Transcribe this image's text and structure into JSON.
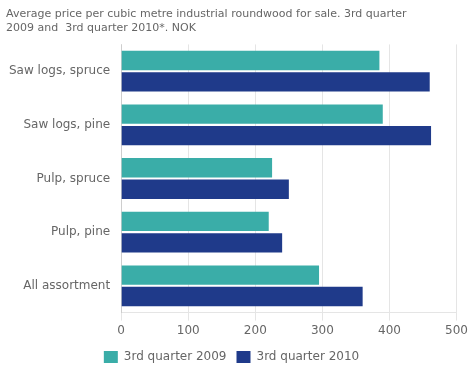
{
  "chart_data": {
    "type": "bar",
    "orientation": "horizontal",
    "title": [
      "Average price per cubic metre industrial roundwood for sale. 3rd quarter",
      "2009 and  3rd quarter 2010*. NOK"
    ],
    "categories": [
      "Saw logs, spruce",
      "Saw logs, pine",
      "Pulp, spruce",
      "Pulp, pine",
      "All assortment"
    ],
    "series": [
      {
        "name": "3rd quarter 2009",
        "color": "#3aada8",
        "values": [
          385,
          390,
          225,
          220,
          295
        ]
      },
      {
        "name": "3rd quarter 2010",
        "color": "#1f3a8a",
        "values": [
          460,
          462,
          250,
          240,
          360
        ]
      }
    ],
    "xlim": [
      0,
      500
    ],
    "xticks": [
      0,
      100,
      200,
      300,
      400,
      500
    ],
    "grid": true,
    "legend": "bottom"
  }
}
